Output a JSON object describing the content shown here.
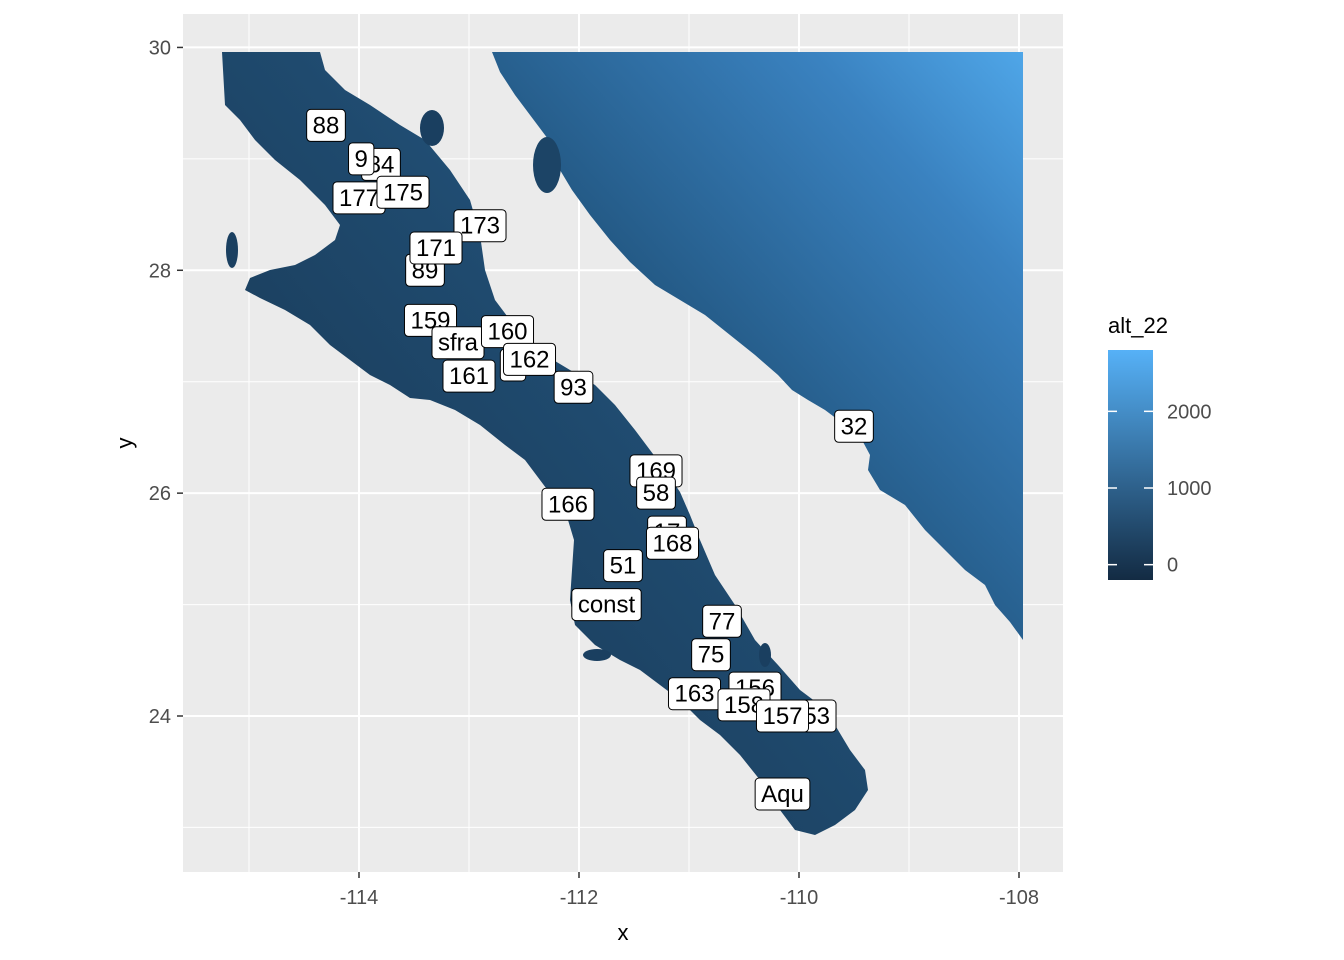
{
  "chart_data": {
    "type": "raster-map",
    "xlabel": "x",
    "ylabel": "y",
    "xlim": [
      -115.6,
      -107.6
    ],
    "ylim": [
      22.6,
      30.3
    ],
    "x_ticks": [
      -114,
      -112,
      -110,
      -108
    ],
    "x_tick_labels": [
      "-114",
      "-112",
      "-110",
      "-108"
    ],
    "y_ticks": [
      24,
      26,
      28,
      30
    ],
    "y_tick_labels": [
      "24",
      "26",
      "28",
      "30"
    ],
    "grid": true,
    "legend": {
      "title": "alt_22",
      "placement": "right",
      "ticks": [
        0,
        1000,
        2000
      ],
      "tick_labels": [
        "0",
        "1000",
        "2000"
      ],
      "range": [
        -200,
        2800
      ],
      "color_low": "#132B43",
      "color_high": "#56B1F7"
    },
    "sites": [
      {
        "label": "88",
        "x": -114.3,
        "y": 29.3
      },
      {
        "label": "84",
        "x": -113.8,
        "y": 28.95
      },
      {
        "label": "9",
        "x": -113.98,
        "y": 29.0
      },
      {
        "label": "177",
        "x": -114.0,
        "y": 28.65
      },
      {
        "label": "175",
        "x": -113.6,
        "y": 28.7
      },
      {
        "label": "173",
        "x": -112.9,
        "y": 28.4
      },
      {
        "label": "89",
        "x": -113.4,
        "y": 28.0
      },
      {
        "label": "171",
        "x": -113.3,
        "y": 28.2
      },
      {
        "label": "159",
        "x": -113.35,
        "y": 27.55
      },
      {
        "label": "sfra",
        "x": -113.1,
        "y": 27.35
      },
      {
        "label": "160",
        "x": -112.65,
        "y": 27.45
      },
      {
        "label": "1",
        "x": -112.6,
        "y": 27.15
      },
      {
        "label": "162",
        "x": -112.45,
        "y": 27.2
      },
      {
        "label": "161",
        "x": -113.0,
        "y": 27.05
      },
      {
        "label": "93",
        "x": -112.05,
        "y": 26.95
      },
      {
        "label": "32",
        "x": -109.5,
        "y": 26.6
      },
      {
        "label": "169",
        "x": -111.3,
        "y": 26.2
      },
      {
        "label": "58",
        "x": -111.3,
        "y": 26.0
      },
      {
        "label": "166",
        "x": -112.1,
        "y": 25.9
      },
      {
        "label": "17",
        "x": -111.2,
        "y": 25.65
      },
      {
        "label": "168",
        "x": -111.15,
        "y": 25.55
      },
      {
        "label": "51",
        "x": -111.6,
        "y": 25.35
      },
      {
        "label": "const",
        "x": -111.75,
        "y": 25.0
      },
      {
        "label": "77",
        "x": -110.7,
        "y": 24.85
      },
      {
        "label": "75",
        "x": -110.8,
        "y": 24.55
      },
      {
        "label": "163",
        "x": -110.95,
        "y": 24.2
      },
      {
        "label": "156",
        "x": -110.4,
        "y": 24.25
      },
      {
        "label": "158",
        "x": -110.5,
        "y": 24.1
      },
      {
        "label": "153",
        "x": -109.9,
        "y": 24.0
      },
      {
        "label": "157",
        "x": -110.15,
        "y": 24.0
      },
      {
        "label": "Aqu",
        "x": -110.15,
        "y": 23.3
      }
    ]
  }
}
